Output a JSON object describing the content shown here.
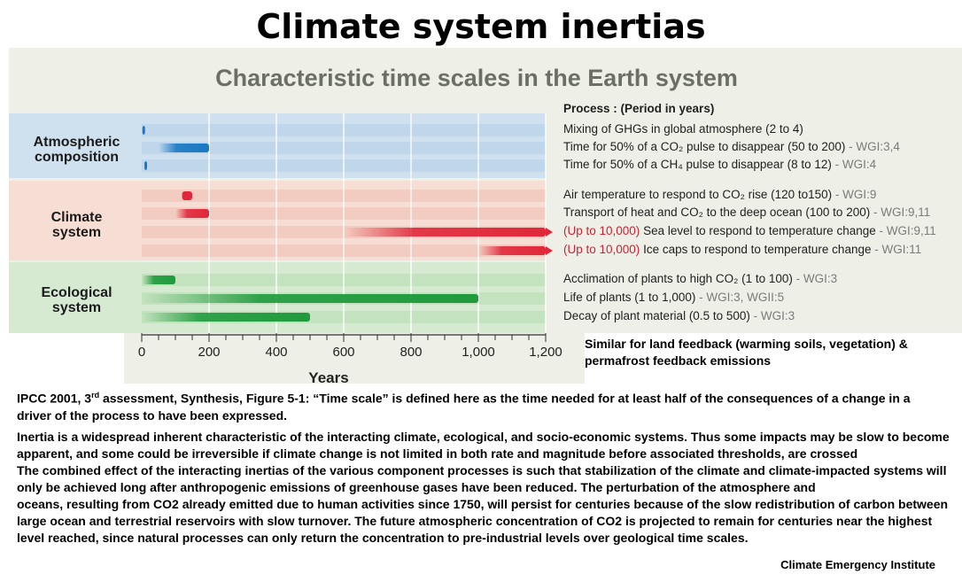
{
  "slide_title": "Climate system inertias",
  "chart_data": {
    "type": "bar",
    "title": "Characteristic time scales in the Earth system",
    "xlabel": "Years",
    "xlim": [
      0,
      1200
    ],
    "x_ticks": [
      "0",
      "200",
      "400",
      "600",
      "800",
      "1,000",
      "1,200"
    ],
    "grid": true,
    "process_header": "Process : (Period in years)",
    "groups": [
      {
        "label_line1": "Atmospheric",
        "label_line2": "composition",
        "color": "#1a78c2"
      },
      {
        "label_line1": "Climate",
        "label_line2": "system",
        "color": "#e0283a"
      },
      {
        "label_line1": "Ecological",
        "label_line2": "system",
        "color": "#1f9a3c"
      }
    ],
    "processes": [
      {
        "group": 0,
        "start": 2,
        "end": 4,
        "prefix": "",
        "text": "Mixing of GHGs in global atmosphere (2 to 4)",
        "ref": ""
      },
      {
        "group": 0,
        "start": 50,
        "end": 200,
        "prefix": "",
        "text": "Time for 50% of a CO₂ pulse to disappear (50 to 200)",
        "ref": " - WGI:3,4"
      },
      {
        "group": 0,
        "start": 8,
        "end": 12,
        "prefix": "",
        "text": "Time for 50% of a CH₄ pulse to disappear (8 to 12)",
        "ref": " - WGI:4"
      },
      {
        "group": 1,
        "start": 120,
        "end": 150,
        "prefix": "",
        "text": "Air temperature to respond to CO₂ rise (120 to150)",
        "ref": " -  WGI:9"
      },
      {
        "group": 1,
        "start": 100,
        "end": 200,
        "prefix": "",
        "text": "Transport of heat and CO₂ to the deep ocean (100 to 200)",
        "ref": " - WGI:9,11"
      },
      {
        "group": 1,
        "start": 600,
        "end": 10000,
        "prefix": "(Up to 10,000)",
        "text": " Sea level to respond to temperature change",
        "ref": " - WGI:9,11"
      },
      {
        "group": 1,
        "start": 1000,
        "end": 10000,
        "prefix": "(Up to 10,000)",
        "text": " Ice caps to respond to temperature change",
        "ref": " - WGI:11"
      },
      {
        "group": 2,
        "start": 1,
        "end": 100,
        "prefix": "",
        "text": "Acclimation of plants to high CO₂ (1 to 100)",
        "ref": " - WGI:3"
      },
      {
        "group": 2,
        "start": 1,
        "end": 1000,
        "prefix": "",
        "text": "Life of plants (1 to 1,000)",
        "ref": " - WGI:3, WGII:5"
      },
      {
        "group": 2,
        "start": 0.5,
        "end": 500,
        "prefix": "",
        "text": "Decay of plant material (0.5 to 500)",
        "ref": " - WGI:3"
      }
    ]
  },
  "side_note": "Similar for land feedback (warming soils, vegetation) & permafrost feedback emissions",
  "caption": {
    "prefix": "IPCC 2001, 3",
    "superscript": "rd",
    "rest": " assessment, Synthesis, Figure 5-1: “Time scale” is defined here as the time needed for at least half of the consequences of a change in a driver of the process to have been expressed."
  },
  "body_lines": [
    "Inertia is a widespread inherent characteristic of the interacting climate, ecological, and socio-economic systems. Thus some impacts may be slow to become apparent, and some could be irreversible if climate change is not limited in both rate and magnitude before associated thresholds, are crossed",
    "The combined effect of the interacting inertias of the various component processes is such that stabilization of the climate and climate-impacted  systems will only be achieved long after anthropogenic emissions of greenhouse gases have been reduced. The perturbation of the atmosphere and",
    "oceans, resulting from CO2  already emitted due to human activities since 1750, will persist for centuries because of the slow redistribution of carbon between large ocean and terrestrial reservoirs with slow turnover. The future atmospheric concentration of CO2  is projected to remain for centuries near the highest level reached, since natural processes can only return the concentration to pre-industrial levels over geological time scales."
  ],
  "credit": "Climate Emergency Institute"
}
